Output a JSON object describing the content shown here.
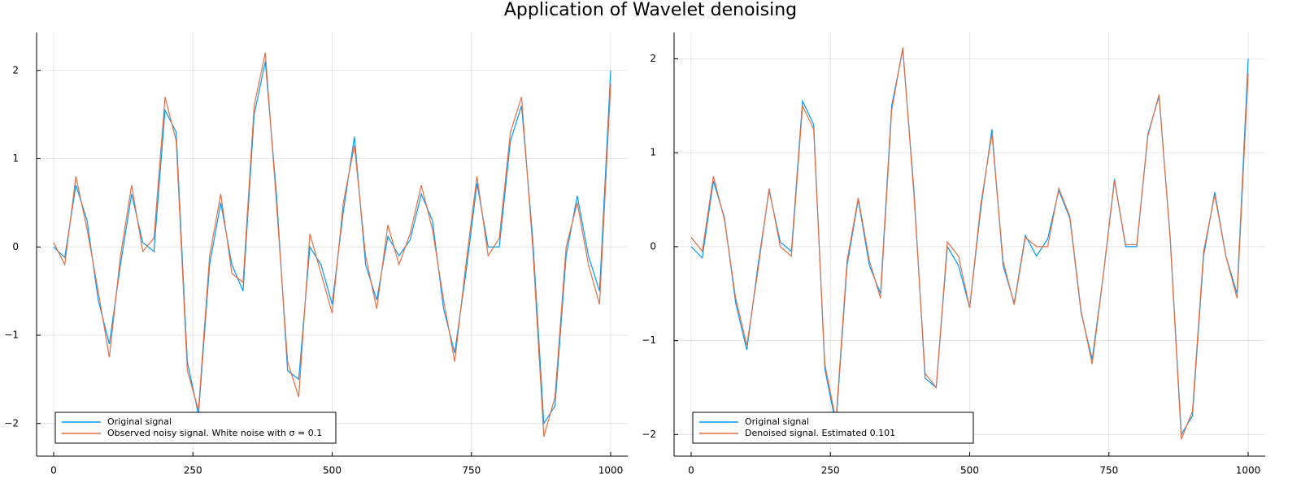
{
  "title": "Application of Wavelet denoising",
  "chart_data": [
    {
      "type": "line",
      "x": [
        0,
        20,
        40,
        60,
        80,
        100,
        120,
        140,
        160,
        180,
        200,
        220,
        240,
        260,
        280,
        300,
        320,
        340,
        360,
        380,
        400,
        420,
        440,
        460,
        480,
        500,
        520,
        540,
        560,
        580,
        600,
        620,
        640,
        660,
        680,
        700,
        720,
        740,
        760,
        780,
        800,
        820,
        840,
        860,
        880,
        900,
        920,
        940,
        960,
        980,
        1000
      ],
      "series": [
        {
          "name": "Original signal",
          "color": "#009af9",
          "values": [
            0,
            -0.12,
            0.7,
            0.3,
            -0.6,
            -1.1,
            -0.2,
            0.6,
            0.05,
            -0.05,
            1.55,
            1.3,
            -1.3,
            -1.9,
            -0.2,
            0.5,
            -0.2,
            -0.5,
            1.5,
            2.1,
            0.6,
            -1.4,
            -1.5,
            0.0,
            -0.2,
            -0.65,
            0.4,
            1.25,
            -0.2,
            -0.6,
            0.12,
            -0.1,
            0.08,
            0.6,
            0.3,
            -0.7,
            -1.2,
            -0.3,
            0.72,
            0.0,
            0.0,
            1.2,
            1.6,
            0.1,
            -2.0,
            -1.8,
            -0.1,
            0.58,
            -0.1,
            -0.5,
            2.0
          ]
        },
        {
          "name": "Observed noisy signal. White noise with σ = 0.1",
          "color": "#e26f46",
          "values": [
            0.05,
            -0.2,
            0.8,
            0.2,
            -0.5,
            -1.25,
            -0.1,
            0.7,
            -0.05,
            0.1,
            1.7,
            1.2,
            -1.4,
            -1.85,
            -0.1,
            0.6,
            -0.3,
            -0.4,
            1.6,
            2.2,
            0.5,
            -1.3,
            -1.7,
            0.15,
            -0.3,
            -0.75,
            0.5,
            1.15,
            -0.1,
            -0.7,
            0.25,
            -0.2,
            0.15,
            0.7,
            0.2,
            -0.6,
            -1.3,
            -0.2,
            0.8,
            -0.1,
            0.1,
            1.3,
            1.7,
            0.0,
            -2.15,
            -1.7,
            0.0,
            0.5,
            -0.2,
            -0.65,
            1.85
          ]
        }
      ],
      "xlim": [
        -30.6,
        1030.6
      ],
      "ylim": [
        -2.37,
        2.43
      ],
      "xticks": [
        0,
        250,
        500,
        750,
        1000
      ],
      "yticks": [
        {
          "value": -2,
          "label": "−2"
        },
        {
          "value": -1,
          "label": "−1"
        },
        0,
        1,
        2
      ],
      "grid": true,
      "legend": "bottom-left"
    },
    {
      "type": "line",
      "x": [
        0,
        20,
        40,
        60,
        80,
        100,
        120,
        140,
        160,
        180,
        200,
        220,
        240,
        260,
        280,
        300,
        320,
        340,
        360,
        380,
        400,
        420,
        440,
        460,
        480,
        500,
        520,
        540,
        560,
        580,
        600,
        620,
        640,
        660,
        680,
        700,
        720,
        740,
        760,
        780,
        800,
        820,
        840,
        860,
        880,
        900,
        920,
        940,
        960,
        980,
        1000
      ],
      "series": [
        {
          "name": "Original signal",
          "color": "#009af9",
          "values": [
            0,
            -0.12,
            0.7,
            0.3,
            -0.6,
            -1.1,
            -0.2,
            0.6,
            0.05,
            -0.05,
            1.55,
            1.3,
            -1.3,
            -1.9,
            -0.2,
            0.5,
            -0.2,
            -0.5,
            1.5,
            2.1,
            0.6,
            -1.4,
            -1.5,
            0.0,
            -0.2,
            -0.65,
            0.4,
            1.25,
            -0.2,
            -0.6,
            0.12,
            -0.1,
            0.08,
            0.6,
            0.3,
            -0.7,
            -1.2,
            -0.3,
            0.72,
            0.0,
            0.0,
            1.2,
            1.6,
            0.1,
            -2.0,
            -1.8,
            -0.1,
            0.58,
            -0.1,
            -0.5,
            2.0
          ]
        },
        {
          "name": "Denoised signal. Estimated 0.101",
          "color": "#e26f46",
          "values": [
            0.1,
            -0.05,
            0.75,
            0.28,
            -0.55,
            -1.05,
            -0.25,
            0.62,
            0.0,
            -0.1,
            1.5,
            1.25,
            -1.25,
            -1.85,
            -0.15,
            0.52,
            -0.15,
            -0.55,
            1.45,
            2.12,
            0.55,
            -1.35,
            -1.5,
            0.05,
            -0.1,
            -0.65,
            0.45,
            1.2,
            -0.15,
            -0.62,
            0.1,
            0.0,
            0.0,
            0.62,
            0.32,
            -0.68,
            -1.25,
            -0.3,
            0.7,
            0.02,
            0.02,
            1.18,
            1.62,
            0.08,
            -2.05,
            -1.75,
            -0.05,
            0.55,
            -0.1,
            -0.55,
            1.85
          ]
        }
      ],
      "xlim": [
        -30.6,
        1030.6
      ],
      "ylim": [
        -2.23,
        2.28
      ],
      "xticks": [
        0,
        250,
        500,
        750,
        1000
      ],
      "yticks": [
        {
          "value": -2,
          "label": "−2"
        },
        {
          "value": -1,
          "label": "−1"
        },
        0,
        1,
        2
      ],
      "grid": true,
      "legend": "bottom-left"
    }
  ]
}
